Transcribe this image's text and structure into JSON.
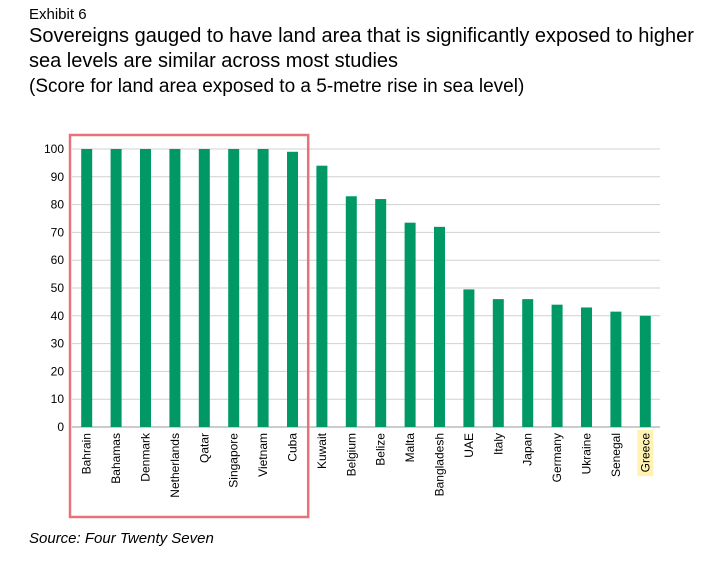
{
  "exhibit_label": "Exhibit 6",
  "title": "Sovereigns gauged to have land area that is significantly exposed to higher sea levels are similar across most studies",
  "subtitle": "(Score for land area exposed to a 5-metre rise in sea level)",
  "source": "Source: Four Twenty Seven",
  "colors": {
    "bar": "#009966",
    "grid": "#d0d0d0",
    "highlight_box": "#e8727a",
    "label_highlight": "#fff2b3"
  },
  "chart_data": {
    "type": "bar",
    "title": "Sovereigns gauged to have land area that is significantly exposed to higher sea levels are similar across most studies",
    "subtitle": "(Score for land area exposed to a 5-metre rise in sea level)",
    "xlabel": "",
    "ylabel": "",
    "ylim": [
      0,
      100
    ],
    "yticks": [
      0,
      10,
      20,
      30,
      40,
      50,
      60,
      70,
      80,
      90,
      100
    ],
    "grid": true,
    "categories": [
      "Bahrain",
      "Bahamas",
      "Denmark",
      "Netherlands",
      "Qatar",
      "Singapore",
      "Vietnam",
      "Cuba",
      "Kuwait",
      "Belgium",
      "Belize",
      "Malta",
      "Bangladesh",
      "UAE",
      "Italy",
      "Japan",
      "Germany",
      "Ukraine",
      "Senegal",
      "Greece"
    ],
    "values": [
      100,
      100,
      100,
      100,
      100,
      100,
      100,
      99,
      94,
      83,
      82,
      73.5,
      72,
      49.5,
      46,
      46,
      44,
      43,
      41.5,
      40
    ],
    "highlighted_group": [
      "Bahrain",
      "Bahamas",
      "Denmark",
      "Netherlands",
      "Qatar",
      "Singapore",
      "Vietnam",
      "Cuba"
    ],
    "highlighted_label": "Greece"
  }
}
